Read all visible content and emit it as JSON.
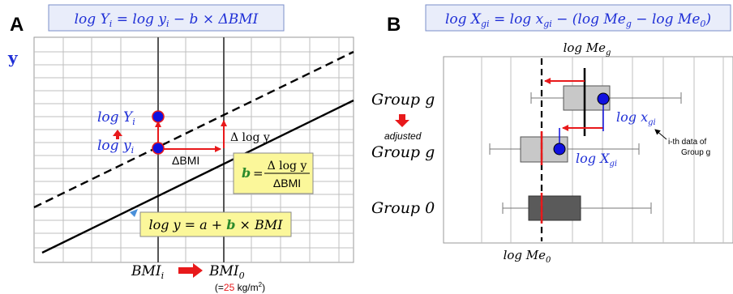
{
  "panel_a": {
    "letter": "A",
    "equation": "log Y_i = log y_i − b × ΔBMI",
    "eq_parts": {
      "lhs": "log Y",
      "lhs_sub": "i",
      "mid": " = log y",
      "mid_sub": "i",
      "rhs": " − b × ΔBMI"
    },
    "y_axis_label": "y",
    "label_logYi": "log Y",
    "label_logYi_sub": "i",
    "label_logyi": "log y",
    "label_logyi_sub": "i",
    "label_dlogy": "Δ log y",
    "label_dbmi": "ΔBMI",
    "slope_box": {
      "b": "b",
      "eq": "=",
      "num": "Δ log y",
      "den": "ΔBMI"
    },
    "line_box": {
      "pre": "log y = a + ",
      "b": "b",
      "post": " × BMI"
    },
    "x_label_bmi_i": "BMI",
    "x_label_bmi_i_sub": "i",
    "x_label_bmi_0": "BMI",
    "x_label_bmi_0_sub": "0",
    "ref_note_pre": "(=",
    "ref_note_value": "25",
    "ref_note_unit": " kg/m",
    "ref_note_sup": "2",
    "ref_note_post": ")"
  },
  "panel_b": {
    "letter": "B",
    "equation": "log X_gi = log x_gi − (log Me_g − log Me_0)",
    "eq_parts": {
      "lhs": "log X",
      "lhs_sub": "gi",
      "mid": " = log x",
      "mid_sub": "gi",
      "rhs1": " − (log Me",
      "rhs1_sub": "g",
      "rhs2": " − log Me",
      "rhs2_sub": "0",
      "rhs3": ")"
    },
    "label_logMeg": "log Me",
    "label_logMeg_sub": "g",
    "label_logMe0": "log Me",
    "label_logMe0_sub": "0",
    "label_logxgi": "log x",
    "label_logxgi_sub": "gi",
    "label_logXgi": "log X",
    "label_logXgi_sub": "gi",
    "group_g": "Group g",
    "adjusted": "adjusted",
    "adjusted_group_g": "Group g",
    "group_0": "Group 0",
    "note_line1": "i-th data of",
    "note_line2": "Group g"
  },
  "colors": {
    "blue_text": "#1f2fd6",
    "red": "#e8191b",
    "green": "#2c8a2c",
    "eq_box_bg": "#e9edfa",
    "eq_box_border": "#7b8fc9",
    "yellow_box": "#fbf79a",
    "grid": "#bfbfbf",
    "box_light": "#c8c8c8",
    "box_dark": "#5a5a5a",
    "dot_blue": "#1010e0"
  }
}
